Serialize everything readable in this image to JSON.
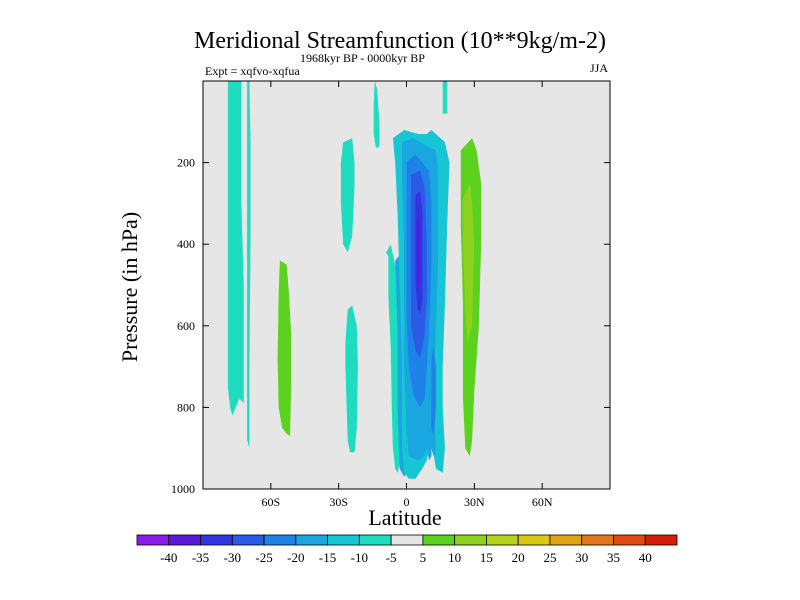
{
  "chart_data": {
    "type": "contour",
    "title": "Meridional Streamfunction (10**9kg/m-2)",
    "subtitle": "1968kyr BP - 0000kyr BP",
    "left_label": "Expt = xqfvo-xqfua",
    "season": "JJA",
    "xlabel": "Latitude",
    "ylabel": "Pressure (in hPa)",
    "xlim": [
      -90,
      90
    ],
    "ylim": [
      1000,
      0
    ],
    "x_ticks": [
      -60,
      -30,
      0,
      30,
      60
    ],
    "x_tick_labels": [
      "60S",
      "30S",
      "0",
      "30N",
      "60N"
    ],
    "y_ticks": [
      200,
      400,
      600,
      800,
      1000
    ],
    "y_tick_labels": [
      "200",
      "400",
      "600",
      "800",
      "1000"
    ],
    "colorbar": {
      "levels": [
        -40,
        -35,
        -30,
        -25,
        -20,
        -15,
        -10,
        -5,
        5,
        10,
        15,
        20,
        25,
        30,
        35,
        40
      ],
      "labels": [
        "-40",
        "-35",
        "-30",
        "-25",
        "-20",
        "-15",
        "-10",
        "-5",
        "5",
        "10",
        "15",
        "20",
        "25",
        "30",
        "35",
        "40"
      ],
      "colors": [
        "#8a1ee6",
        "#5a1ad8",
        "#3234e0",
        "#2a5ae6",
        "#1e82e8",
        "#1aa6e0",
        "#16c6d2",
        "#1edcc0",
        "#e6e6e6",
        "#5ad21e",
        "#8cd21e",
        "#b4d21a",
        "#d8c814",
        "#e0a412",
        "#e2781a",
        "#e04a14",
        "#d41e0a"
      ]
    },
    "blobs": [
      {
        "name": "contour-region-sh-band-1",
        "level": "-10",
        "color": "#1edcc0",
        "points": [
          [
            -79,
            0
          ],
          [
            -73,
            0
          ],
          [
            -73,
            110
          ],
          [
            -73,
            300
          ],
          [
            -72,
            500
          ],
          [
            -72,
            640
          ],
          [
            -72,
            790
          ],
          [
            -74,
            778
          ],
          [
            -77,
            820
          ],
          [
            -78,
            800
          ],
          [
            -79,
            750
          ],
          [
            -79,
            400
          ]
        ]
      },
      {
        "name": "contour-region-sh-band-2",
        "level": "-10",
        "color": "#1edcc0",
        "points": [
          [
            -70.5,
            0
          ],
          [
            -69.5,
            0
          ],
          [
            -69,
            150
          ],
          [
            -69,
            400
          ],
          [
            -69.5,
            700
          ],
          [
            -69.5,
            900
          ],
          [
            -70.5,
            880
          ],
          [
            -70.5,
            600
          ],
          [
            -70.5,
            300
          ]
        ]
      },
      {
        "name": "contour-region-sh-positive",
        "level": "10",
        "color": "#5ad21e",
        "points": [
          [
            -56,
            440
          ],
          [
            -53,
            450
          ],
          [
            -52,
            520
          ],
          [
            -51,
            620
          ],
          [
            -51,
            740
          ],
          [
            -51.5,
            870
          ],
          [
            -53,
            865
          ],
          [
            -55,
            850
          ],
          [
            -56.5,
            800
          ],
          [
            -57,
            680
          ],
          [
            -56.5,
            520
          ]
        ]
      },
      {
        "name": "contour-region-30s-upper",
        "level": "-10",
        "color": "#1edcc0",
        "points": [
          [
            -28,
            150
          ],
          [
            -24,
            140
          ],
          [
            -23,
            200
          ],
          [
            -23,
            260
          ],
          [
            -24,
            380
          ],
          [
            -26,
            420
          ],
          [
            -28,
            400
          ],
          [
            -29,
            300
          ],
          [
            -29,
            200
          ]
        ]
      },
      {
        "name": "contour-region-30s-lower",
        "level": "-10",
        "color": "#1edcc0",
        "points": [
          [
            -26,
            560
          ],
          [
            -27,
            640
          ],
          [
            -27,
            700
          ],
          [
            -26.5,
            800
          ],
          [
            -26,
            880
          ],
          [
            -25,
            910
          ],
          [
            -23,
            910
          ],
          [
            -22,
            850
          ],
          [
            -21.5,
            700
          ],
          [
            -22,
            600
          ],
          [
            -24,
            550
          ]
        ]
      },
      {
        "name": "contour-region-small-top",
        "level": "-10",
        "color": "#1edcc0",
        "points": [
          [
            -14,
            0
          ],
          [
            -13,
            20
          ],
          [
            -12,
            100
          ],
          [
            -12,
            160
          ],
          [
            -13.5,
            165
          ],
          [
            -14.5,
            130
          ],
          [
            -14.5,
            60
          ]
        ]
      },
      {
        "name": "contour-region-tropical-neg-outer",
        "level": "-10",
        "color": "#1edcc0",
        "points": [
          [
            -9,
            420
          ],
          [
            -8,
            430
          ],
          [
            -8,
            530
          ],
          [
            -7,
            650
          ],
          [
            -6.5,
            800
          ],
          [
            -6,
            900
          ],
          [
            -5,
            950
          ],
          [
            -4,
            960
          ],
          [
            -3,
            940
          ],
          [
            -3,
            850
          ],
          [
            -3,
            700
          ],
          [
            -3,
            550
          ],
          [
            -5,
            450
          ],
          [
            -7,
            400
          ]
        ]
      },
      {
        "name": "contour-region-south-wall",
        "level": "-15",
        "color": "#1aa6e0",
        "points": [
          [
            -5,
            440
          ],
          [
            -4,
            600
          ],
          [
            -4,
            800
          ],
          [
            -3,
            950
          ],
          [
            -1,
            970
          ],
          [
            1,
            950
          ],
          [
            1,
            800
          ],
          [
            1,
            600
          ],
          [
            0,
            460
          ],
          [
            -2,
            420
          ]
        ]
      },
      {
        "name": "contour-region-main-cell-outer",
        "level": "-5",
        "color": "#16c6d2",
        "points": [
          [
            -6,
            140
          ],
          [
            -1,
            120
          ],
          [
            5,
            130
          ],
          [
            9,
            130
          ],
          [
            11,
            120
          ],
          [
            14,
            135
          ],
          [
            17,
            150
          ],
          [
            19,
            200
          ],
          [
            18,
            350
          ],
          [
            17,
            550
          ],
          [
            16,
            700
          ],
          [
            16,
            800
          ],
          [
            17,
            900
          ],
          [
            16,
            960
          ],
          [
            13,
            950
          ],
          [
            11,
            880
          ],
          [
            9,
            930
          ],
          [
            7,
            950
          ],
          [
            4,
            975
          ],
          [
            1,
            975
          ],
          [
            -1,
            960
          ],
          [
            -2,
            900
          ],
          [
            -2,
            700
          ],
          [
            -3,
            500
          ],
          [
            -4,
            320
          ],
          [
            -5,
            200
          ]
        ]
      },
      {
        "name": "contour-region-main-cell-15",
        "level": "-15",
        "color": "#1aa6e0",
        "points": [
          [
            -2,
            150
          ],
          [
            3,
            140
          ],
          [
            6,
            150
          ],
          [
            9,
            160
          ],
          [
            13,
            170
          ],
          [
            14,
            220
          ],
          [
            14,
            420
          ],
          [
            13,
            600
          ],
          [
            12,
            760
          ],
          [
            13,
            900
          ],
          [
            12,
            920
          ],
          [
            10,
            880
          ],
          [
            8,
            920
          ],
          [
            5,
            930
          ],
          [
            1,
            920
          ],
          [
            0,
            850
          ],
          [
            -1,
            700
          ],
          [
            -1,
            550
          ],
          [
            -1,
            400
          ],
          [
            -2,
            250
          ]
        ]
      },
      {
        "name": "contour-region-main-cell-20",
        "level": "-20",
        "color": "#1e82e8",
        "points": [
          [
            0,
            200
          ],
          [
            4,
            180
          ],
          [
            7,
            200
          ],
          [
            10,
            220
          ],
          [
            11,
            300
          ],
          [
            11,
            450
          ],
          [
            10,
            600
          ],
          [
            9,
            700
          ],
          [
            8,
            780
          ],
          [
            6,
            800
          ],
          [
            3,
            770
          ],
          [
            1,
            700
          ],
          [
            0,
            580
          ],
          [
            0,
            450
          ],
          [
            0,
            300
          ]
        ]
      },
      {
        "name": "contour-region-main-cell-25",
        "level": "-25",
        "color": "#2a5ae6",
        "points": [
          [
            2,
            230
          ],
          [
            6,
            220
          ],
          [
            8,
            260
          ],
          [
            9,
            400
          ],
          [
            9,
            520
          ],
          [
            8,
            620
          ],
          [
            6,
            680
          ],
          [
            4,
            660
          ],
          [
            2,
            600
          ],
          [
            2,
            450
          ],
          [
            2,
            320
          ]
        ]
      },
      {
        "name": "contour-region-main-cell-30",
        "level": "-30",
        "color": "#3234e0",
        "points": [
          [
            4,
            280
          ],
          [
            6,
            270
          ],
          [
            7,
            320
          ],
          [
            7,
            450
          ],
          [
            7,
            540
          ],
          [
            6,
            570
          ],
          [
            5,
            560
          ],
          [
            4,
            500
          ],
          [
            4,
            380
          ]
        ]
      },
      {
        "name": "contour-region-main-cell-35",
        "level": "-35",
        "color": "#5a1ad8",
        "points": [
          [
            4.7,
            340
          ],
          [
            5.6,
            330
          ],
          [
            6,
            400
          ],
          [
            6,
            470
          ],
          [
            5.5,
            500
          ],
          [
            4.9,
            480
          ],
          [
            4.6,
            420
          ]
        ]
      },
      {
        "name": "contour-region-lower-15",
        "level": "-15",
        "color": "#1aa6e0",
        "points": [
          [
            10,
            820
          ],
          [
            11,
            880
          ],
          [
            11,
            920
          ],
          [
            10,
            930
          ],
          [
            9,
            900
          ],
          [
            9,
            860
          ]
        ]
      },
      {
        "name": "contour-region-lower-20",
        "level": "-20",
        "color": "#1e82e8",
        "points": [
          [
            12,
            650
          ],
          [
            13,
            700
          ],
          [
            13,
            800
          ],
          [
            12,
            870
          ],
          [
            11,
            850
          ],
          [
            11,
            750
          ],
          [
            11,
            680
          ]
        ]
      },
      {
        "name": "contour-region-nh-strip",
        "level": "-10",
        "color": "#1edcc0",
        "points": [
          [
            16,
            0
          ],
          [
            18,
            0
          ],
          [
            18,
            80
          ],
          [
            16,
            80
          ]
        ]
      },
      {
        "name": "contour-region-nh-positive",
        "level": "10",
        "color": "#5ad21e",
        "points": [
          [
            24,
            170
          ],
          [
            29,
            140
          ],
          [
            31,
            170
          ],
          [
            33,
            250
          ],
          [
            33,
            400
          ],
          [
            32,
            600
          ],
          [
            30,
            760
          ],
          [
            29,
            880
          ],
          [
            28,
            920
          ],
          [
            26,
            900
          ],
          [
            25,
            780
          ],
          [
            25,
            550
          ],
          [
            24,
            350
          ]
        ]
      },
      {
        "name": "contour-region-nh-positive-15",
        "level": "15",
        "color": "#8cd21e",
        "points": [
          [
            25,
            290
          ],
          [
            28,
            250
          ],
          [
            29,
            300
          ],
          [
            30,
            400
          ],
          [
            29,
            600
          ],
          [
            27,
            640
          ],
          [
            26,
            560
          ],
          [
            25,
            420
          ]
        ]
      }
    ]
  }
}
